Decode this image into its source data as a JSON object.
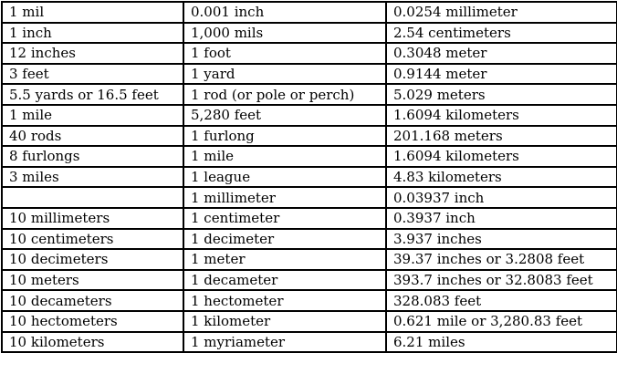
{
  "table": {
    "rows": [
      [
        "1 mil",
        "0.001 inch",
        "0.0254 millimeter"
      ],
      [
        "1 inch",
        "1,000 mils",
        "2.54 centimeters"
      ],
      [
        "12 inches",
        "1 foot",
        "0.3048 meter"
      ],
      [
        "3 feet",
        "1 yard",
        "0.9144 meter"
      ],
      [
        "5.5 yards or 16.5 feet",
        "1 rod (or pole or perch)",
        "5.029 meters"
      ],
      [
        "1 mile",
        "5,280 feet",
        "1.6094 kilometers"
      ],
      [
        "40 rods",
        "1 furlong",
        "201.168 meters"
      ],
      [
        "8 furlongs",
        "1 mile",
        "1.6094 kilometers"
      ],
      [
        "3 miles",
        "1 league",
        "4.83 kilometers"
      ],
      [
        "",
        "1 millimeter",
        "0.03937 inch"
      ],
      [
        "10 millimeters",
        "1 centimeter",
        "0.3937 inch"
      ],
      [
        "10 centimeters",
        "1 decimeter",
        "3.937 inches"
      ],
      [
        "10 decimeters",
        "1 meter",
        "39.37 inches or 3.2808 feet"
      ],
      [
        "10 meters",
        "1 decameter",
        "393.7 inches or 32.8083 feet"
      ],
      [
        "10 decameters",
        "1 hectometer",
        "328.083 feet"
      ],
      [
        "10 hectometers",
        "1 kilometer",
        "0.621 mile or 3,280.83 feet"
      ],
      [
        "10 kilometers",
        "1 myriameter",
        "6.21 miles"
      ]
    ]
  }
}
